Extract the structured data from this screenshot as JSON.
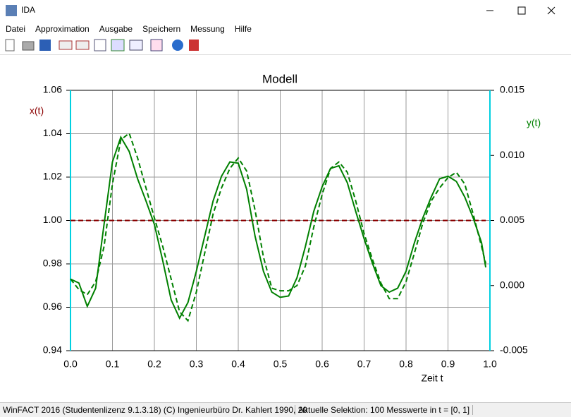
{
  "window": {
    "title": "IDA",
    "menu": [
      "Datei",
      "Approximation",
      "Ausgabe",
      "Speichern",
      "Messung",
      "Hilfe"
    ]
  },
  "chart_data": {
    "type": "line",
    "title": "Modell",
    "xlabel": "Zeit t",
    "ylabel": "x(t)",
    "y2label": "y(t)",
    "ylabel_color": "#8b0000",
    "y2label_color": "#008000",
    "x": [
      0,
      0.02,
      0.04,
      0.06,
      0.08,
      0.1,
      0.12,
      0.14,
      0.16,
      0.18,
      0.2,
      0.22,
      0.24,
      0.26,
      0.28,
      0.3,
      0.32,
      0.34,
      0.36,
      0.38,
      0.4,
      0.42,
      0.44,
      0.46,
      0.48,
      0.5,
      0.52,
      0.54,
      0.56,
      0.58,
      0.6,
      0.62,
      0.64,
      0.66,
      0.68,
      0.7,
      0.72,
      0.74,
      0.76,
      0.78,
      0.8,
      0.82,
      0.84,
      0.86,
      0.88,
      0.9,
      0.92,
      0.94,
      0.96,
      0.98,
      0.99
    ],
    "series": [
      {
        "color": "#8b0000",
        "dashed": true,
        "values": [
          1,
          1,
          1,
          1,
          1,
          1,
          1,
          1,
          1,
          1,
          1,
          1,
          1,
          1,
          1,
          1,
          1,
          1,
          1,
          1,
          1,
          1,
          1,
          1,
          1,
          1,
          1,
          1,
          1,
          1,
          1,
          1,
          1,
          1,
          1,
          1,
          1,
          1,
          1,
          1,
          1,
          1,
          1,
          1,
          1,
          1,
          1,
          1,
          1,
          1,
          1
        ]
      },
      {
        "color": "#008000",
        "dashed": false,
        "axis": "y2",
        "values": [
          0.0005,
          0.0002,
          -0.0016,
          -0.0002,
          0.0047,
          0.0095,
          0.0114,
          0.0103,
          0.0082,
          0.0065,
          0.0047,
          0.0019,
          -0.0011,
          -0.0025,
          -0.0013,
          0.0011,
          0.0038,
          0.0065,
          0.0084,
          0.0095,
          0.0094,
          0.0074,
          0.0038,
          0.0011,
          -0.0005,
          -0.0009,
          -0.0008,
          0.0006,
          0.003,
          0.0057,
          0.0076,
          0.009,
          0.0092,
          0.0079,
          0.0057,
          0.0036,
          0.0017,
          0,
          -0.0005,
          -0.0002,
          0.0011,
          0.0033,
          0.0052,
          0.0068,
          0.0082,
          0.0084,
          0.008,
          0.0068,
          0.0052,
          0.0033,
          0.0014
        ]
      },
      {
        "color": "#008000",
        "dashed": true,
        "axis": "y2",
        "values": [
          0.0005,
          -0.0003,
          -0.0007,
          0.0003,
          0.003,
          0.0078,
          0.0112,
          0.0117,
          0.0098,
          0.0075,
          0.0052,
          0.003,
          0.0005,
          -0.002,
          -0.0027,
          -0.0005,
          0.0025,
          0.0055,
          0.0075,
          0.009,
          0.0098,
          0.0088,
          0.0058,
          0.0022,
          -0.0002,
          -0.0004,
          -0.0004,
          0,
          0.0015,
          0.0045,
          0.007,
          0.009,
          0.0095,
          0.0087,
          0.0065,
          0.004,
          0.002,
          0.0002,
          -0.001,
          -0.001,
          0.0003,
          0.0025,
          0.0048,
          0.0065,
          0.0075,
          0.0083,
          0.0087,
          0.0078,
          0.0055,
          0.003,
          0.0017
        ]
      }
    ],
    "xlim": [
      0,
      1
    ],
    "xticks": [
      {
        "value": 0,
        "label": "0.0"
      },
      0.1,
      0.2,
      0.3,
      0.4,
      0.5,
      0.6,
      0.7,
      0.8,
      0.9,
      {
        "value": 1,
        "label": "1.0"
      }
    ],
    "ylim": [
      0.94,
      1.06
    ],
    "yticks": [
      0.94,
      0.96,
      0.98,
      {
        "value": 1,
        "label": "1.00"
      },
      1.02,
      1.04,
      1.06
    ],
    "y2lim": [
      -0.005,
      0.015
    ],
    "y2ticks": [
      -0.005,
      {
        "value": 0,
        "label": "0.000"
      },
      0.005,
      {
        "value": 0.01,
        "label": "0.010"
      },
      0.015
    ],
    "grid": true
  },
  "statusbar": [
    "WinFACT 2016 (Studentenlizenz 9.1.3.18)  (C) Ingenieurbüro Dr. Kahlert 1990, 20",
    "Aktuelle Selektion: 100 Messwerte in t = [0, 1]"
  ]
}
